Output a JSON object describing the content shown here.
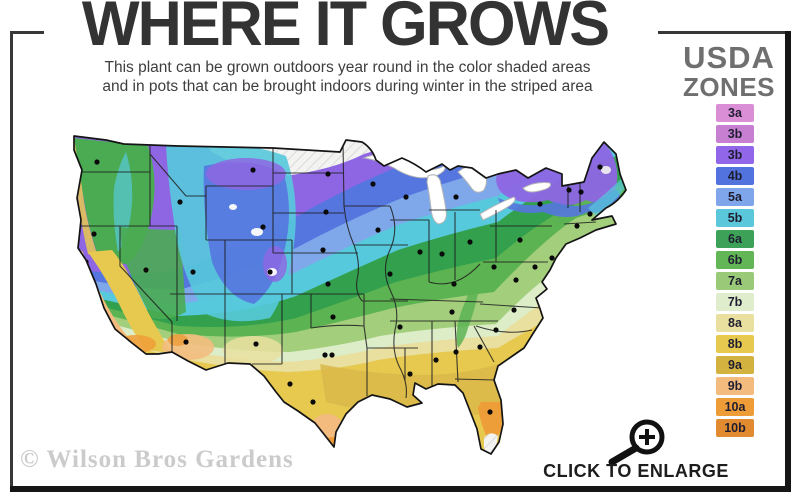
{
  "header": {
    "title": "WHERE IT GROWS",
    "subtitle_line1": "This plant can be grown outdoors year round in the color shaded areas",
    "subtitle_line2": "and in pots that can be brought indoors during winter in the striped area"
  },
  "legend": {
    "title_line1": "USDA",
    "title_line2": "ZONES",
    "zones": [
      {
        "label": "3a",
        "color": "#da8ed6"
      },
      {
        "label": "3b",
        "color": "#c77fd2"
      },
      {
        "label": "3b",
        "color": "#9166e8"
      },
      {
        "label": "4b",
        "color": "#5273dd"
      },
      {
        "label": "5a",
        "color": "#7fa6ea"
      },
      {
        "label": "5b",
        "color": "#5ac8da"
      },
      {
        "label": "6a",
        "color": "#3da258"
      },
      {
        "label": "6b",
        "color": "#62b656"
      },
      {
        "label": "7a",
        "color": "#9aca77"
      },
      {
        "label": "7b",
        "color": "#e0edcc"
      },
      {
        "label": "8a",
        "color": "#e9df9f"
      },
      {
        "label": "8b",
        "color": "#e7c94f"
      },
      {
        "label": "9a",
        "color": "#d4b23f"
      },
      {
        "label": "9b",
        "color": "#f3bc7e"
      },
      {
        "label": "10a",
        "color": "#ee9c37"
      },
      {
        "label": "10b",
        "color": "#e18a2f"
      }
    ]
  },
  "footer": {
    "watermark": "© Wilson Bros Gardens",
    "cta": "CLICK TO ENLARGE"
  }
}
